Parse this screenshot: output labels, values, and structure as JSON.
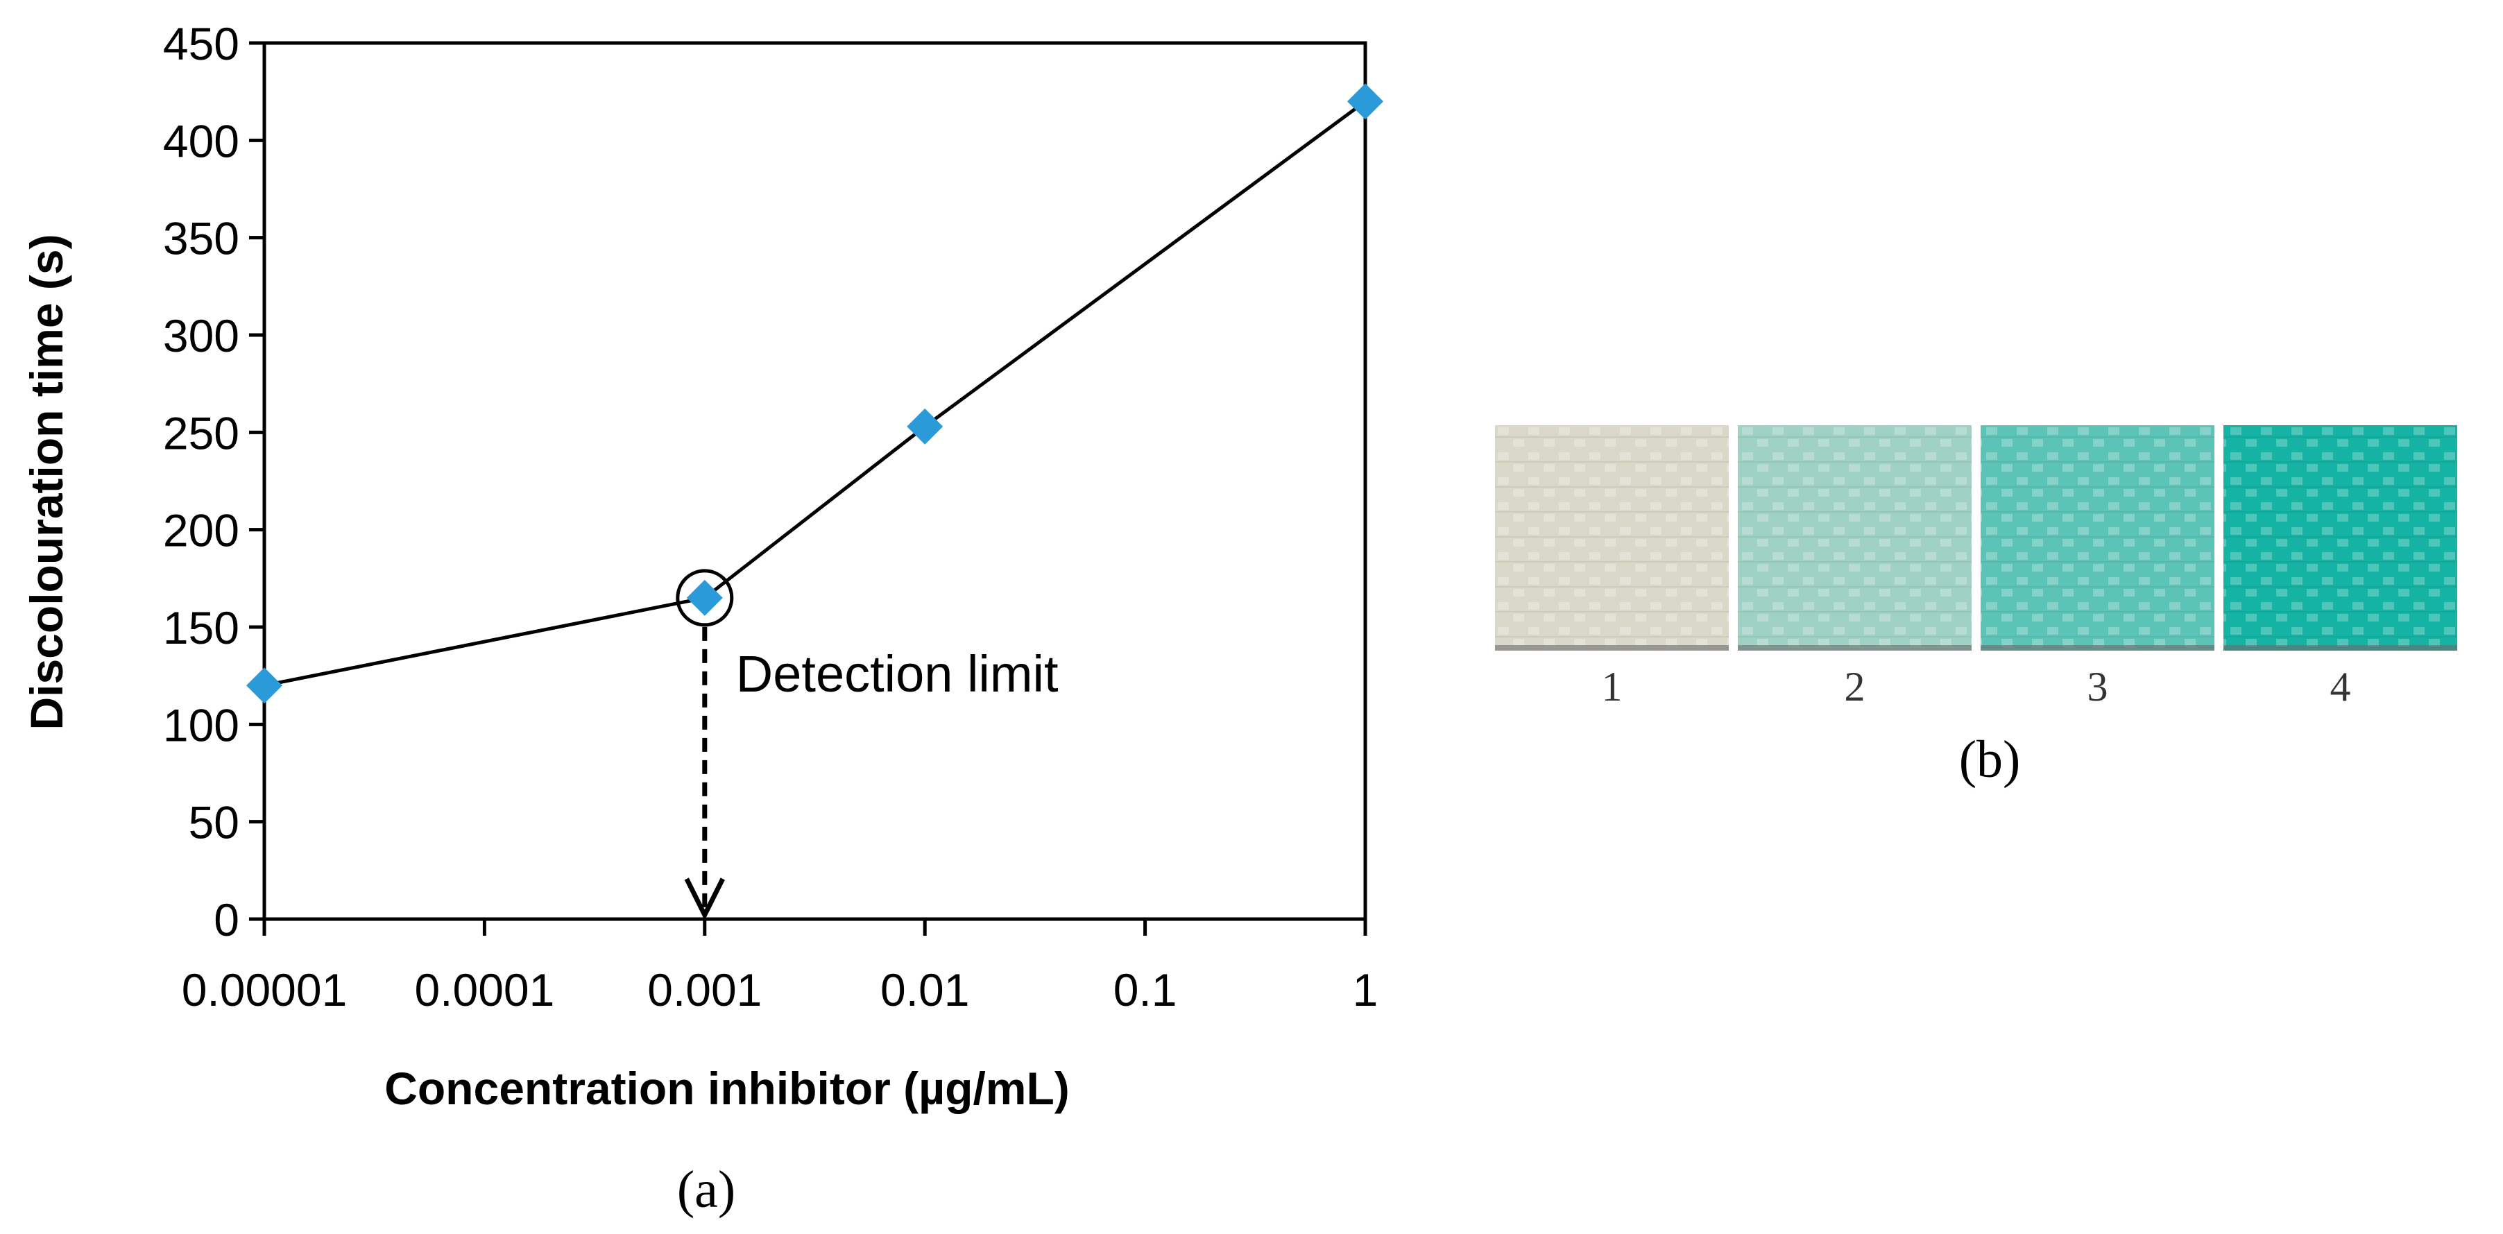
{
  "chart_data": {
    "type": "line",
    "title": "",
    "xlabel": "Concentration inhibitor (µg/mL)",
    "ylabel": "Discolouration time (s)",
    "xscale": "log",
    "x_ticks": [
      "0.00001",
      "0.0001",
      "0.001",
      "0.01",
      "0.1",
      "1"
    ],
    "y_ticks": [
      "0",
      "50",
      "100",
      "150",
      "200",
      "250",
      "300",
      "350",
      "400",
      "450"
    ],
    "ylim": [
      0,
      450
    ],
    "series": [
      {
        "name": "Discolouration time",
        "x": [
          1e-05,
          0.001,
          0.01,
          1
        ],
        "values": [
          120,
          165,
          253,
          420
        ],
        "color": "#2a9ad8"
      }
    ],
    "annotation": {
      "text": "Detection limit",
      "x": 0.001,
      "y": 165
    },
    "line_color": "#000000",
    "panel_label": "(a)"
  },
  "swatches": {
    "labels": [
      "1",
      "2",
      "3",
      "4"
    ],
    "colors": [
      "#d9d8c9",
      "#9fd2c4",
      "#5cc4b6",
      "#14b3a3"
    ],
    "panel_label": "(b)"
  }
}
